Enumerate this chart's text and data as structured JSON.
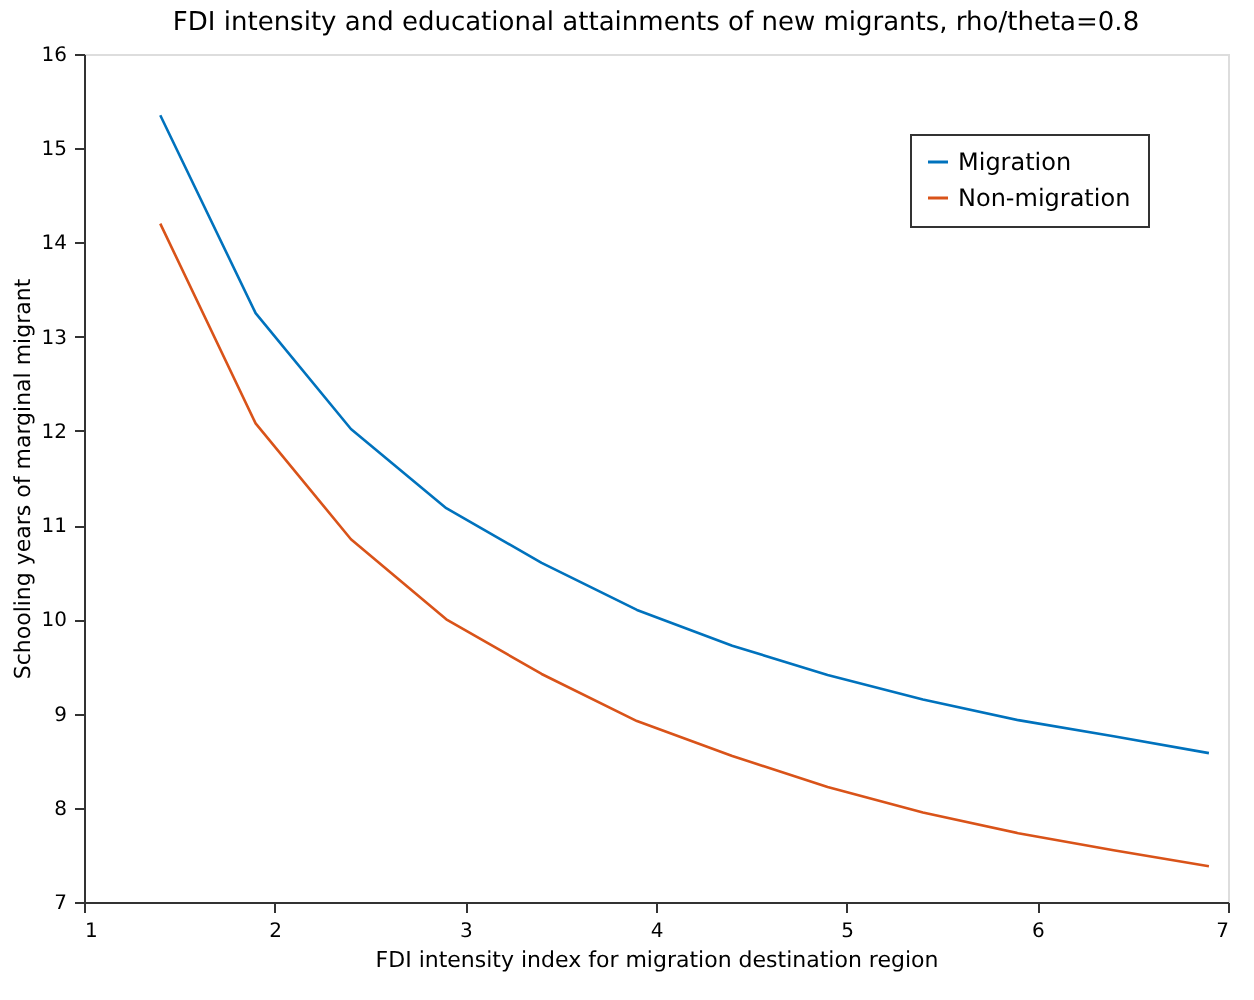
{
  "chart_data": {
    "type": "line",
    "title": "FDI intensity and educational attainments of new migrants, rho/theta=0.8",
    "xlabel": "FDI intensity index for migration destination region",
    "ylabel": "Schooling years of marginal migrant",
    "x": [
      1.4,
      1.9,
      2.4,
      2.9,
      3.4,
      3.9,
      4.4,
      4.9,
      5.4,
      5.9,
      6.4,
      6.9
    ],
    "series": [
      {
        "name": "Migration",
        "color": "#0072bd",
        "values": [
          15.35,
          13.25,
          12.02,
          11.18,
          10.6,
          10.1,
          9.72,
          9.41,
          9.15,
          8.93,
          8.76,
          8.58
        ]
      },
      {
        "name": "Non-migration",
        "color": "#d95319",
        "values": [
          14.2,
          12.08,
          10.85,
          10.0,
          9.42,
          8.92,
          8.55,
          8.22,
          7.95,
          7.73,
          7.55,
          7.38
        ]
      }
    ],
    "xlim": [
      1,
      7
    ],
    "xticks": [
      1,
      2,
      3,
      4,
      5,
      6,
      7
    ],
    "ylim": [
      7,
      16
    ],
    "yticks": [
      7,
      8,
      9,
      10,
      11,
      12,
      13,
      14,
      15,
      16
    ],
    "grid": false,
    "legend": "top right",
    "marker": "none",
    "line_style": "solid"
  }
}
